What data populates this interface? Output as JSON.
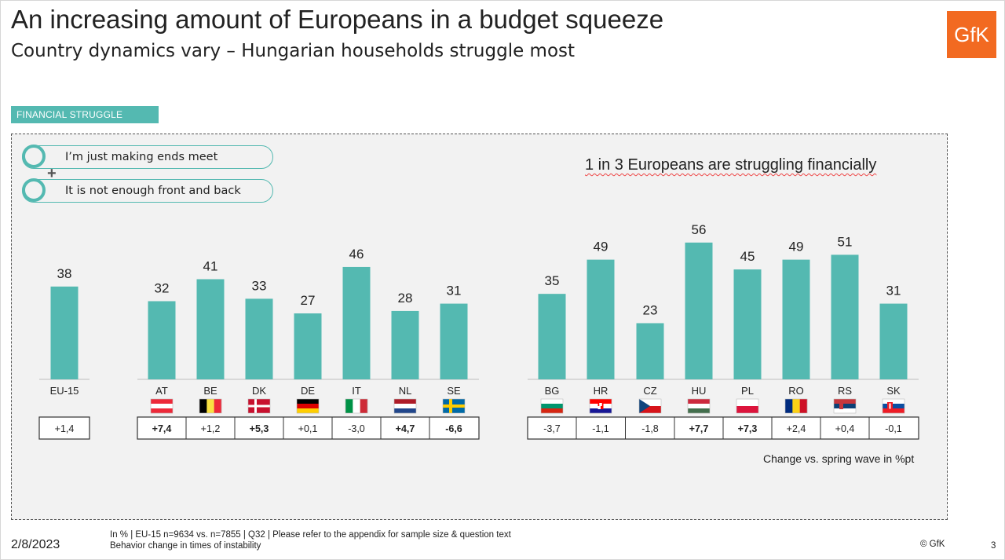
{
  "title": "An increasing amount of Europeans in a budget squeeze",
  "subtitle": "Country dynamics vary – Hungarian households struggle most",
  "logo_text": "GfK",
  "tag": "FINANCIAL STRUGGLE",
  "legend": [
    {
      "label": "I’m just making ends meet"
    },
    {
      "label": "It is not enough front and back"
    }
  ],
  "plus_sign": "+",
  "headline": "1 in 3 Europeans are struggling financially",
  "colors": {
    "bar": "#54b9b1",
    "accent": "#54b9b1",
    "logo": "#f26a21"
  },
  "chart_data": {
    "type": "bar",
    "ylim": [
      0,
      60
    ],
    "unit": "In %",
    "groups": [
      {
        "bars": [
          {
            "code": "EU-15",
            "value": 38,
            "change": "+1,4",
            "bold": false,
            "flag": ""
          }
        ]
      },
      {
        "bars": [
          {
            "code": "AT",
            "value": 32,
            "change": "+7,4",
            "bold": true,
            "flag": "austria-flag-icon"
          },
          {
            "code": "BE",
            "value": 41,
            "change": "+1,2",
            "bold": false,
            "flag": "belgium-flag-icon"
          },
          {
            "code": "DK",
            "value": 33,
            "change": "+5,3",
            "bold": true,
            "flag": "denmark-flag-icon"
          },
          {
            "code": "DE",
            "value": 27,
            "change": "+0,1",
            "bold": false,
            "flag": "germany-flag-icon"
          },
          {
            "code": "IT",
            "value": 46,
            "change": "-3,0",
            "bold": false,
            "flag": "italy-flag-icon"
          },
          {
            "code": "NL",
            "value": 28,
            "change": "+4,7",
            "bold": true,
            "flag": "netherlands-flag-icon"
          },
          {
            "code": "SE",
            "value": 31,
            "change": "-6,6",
            "bold": true,
            "flag": "sweden-flag-icon"
          }
        ]
      },
      {
        "bars": [
          {
            "code": "BG",
            "value": 35,
            "change": "-3,7",
            "bold": false,
            "flag": "bulgaria-flag-icon"
          },
          {
            "code": "HR",
            "value": 49,
            "change": "-1,1",
            "bold": false,
            "flag": "croatia-flag-icon"
          },
          {
            "code": "CZ",
            "value": 23,
            "change": "-1,8",
            "bold": false,
            "flag": "czechia-flag-icon"
          },
          {
            "code": "HU",
            "value": 56,
            "change": "+7,7",
            "bold": true,
            "flag": "hungary-flag-icon"
          },
          {
            "code": "PL",
            "value": 45,
            "change": "+7,3",
            "bold": true,
            "flag": "poland-flag-icon"
          },
          {
            "code": "RO",
            "value": 49,
            "change": "+2,4",
            "bold": false,
            "flag": "romania-flag-icon"
          },
          {
            "code": "RS",
            "value": 51,
            "change": "+0,4",
            "bold": false,
            "flag": "serbia-flag-icon"
          },
          {
            "code": "SK",
            "value": 31,
            "change": "-0,1",
            "bold": false,
            "flag": "slovakia-flag-icon"
          }
        ]
      }
    ],
    "change_label": "Change vs. spring wave in %pt"
  },
  "footer": {
    "date": "2/8/2023",
    "note_line1": "In % | EU-15 n=9634 vs. n=7855 | Q32 | Please refer to the appendix for sample size & question text",
    "note_line2": "Behavior change in times of instability",
    "copyright": "© GfK",
    "page": "3"
  }
}
